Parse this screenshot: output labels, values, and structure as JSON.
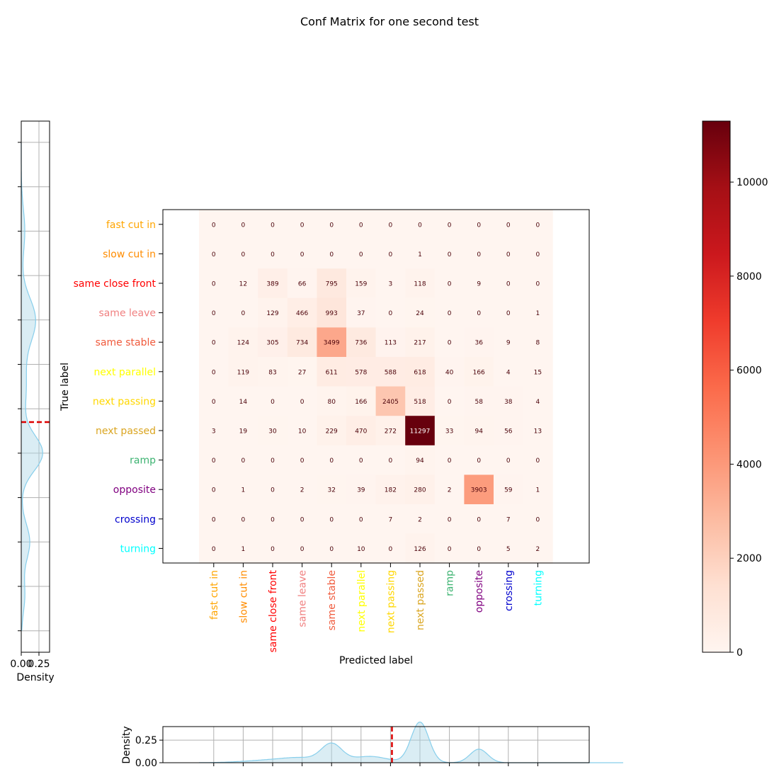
{
  "chart_data": {
    "type": "heatmap",
    "title": "Conf Matrix for one second test",
    "xlabel": "Predicted label",
    "ylabel": "True label",
    "labels": [
      "fast cut in",
      "slow cut in",
      "same close front",
      "same leave",
      "same stable",
      "next parallel",
      "next passing",
      "next passed",
      "ramp",
      "opposite",
      "crossing",
      "turning"
    ],
    "label_colors": [
      "#ffa500",
      "#ff8c00",
      "#ff0000",
      "#f08080",
      "#f05a3c",
      "#ffff00",
      "#ffd700",
      "#daa520",
      "#3cb371",
      "#800080",
      "#0000cd",
      "#00ffff"
    ],
    "matrix": [
      [
        0,
        0,
        0,
        0,
        0,
        0,
        0,
        0,
        0,
        0,
        0,
        0
      ],
      [
        0,
        0,
        0,
        0,
        0,
        0,
        0,
        1,
        0,
        0,
        0,
        0
      ],
      [
        0,
        12,
        389,
        66,
        795,
        159,
        3,
        118,
        0,
        9,
        0,
        0
      ],
      [
        0,
        0,
        129,
        466,
        993,
        37,
        0,
        24,
        0,
        0,
        0,
        1
      ],
      [
        0,
        124,
        305,
        734,
        3499,
        736,
        113,
        217,
        0,
        36,
        9,
        8
      ],
      [
        0,
        119,
        83,
        27,
        611,
        578,
        588,
        618,
        40,
        166,
        4,
        15
      ],
      [
        0,
        14,
        0,
        0,
        80,
        166,
        2405,
        518,
        0,
        58,
        38,
        4
      ],
      [
        3,
        19,
        30,
        10,
        229,
        470,
        272,
        11297,
        33,
        94,
        56,
        13
      ],
      [
        0,
        0,
        0,
        0,
        0,
        0,
        0,
        94,
        0,
        0,
        0,
        0
      ],
      [
        0,
        1,
        0,
        2,
        32,
        39,
        182,
        280,
        2,
        3903,
        59,
        1
      ],
      [
        0,
        0,
        0,
        0,
        0,
        0,
        7,
        2,
        0,
        0,
        7,
        0
      ],
      [
        0,
        1,
        0,
        0,
        0,
        10,
        0,
        126,
        0,
        0,
        5,
        2
      ]
    ],
    "colormap": "Reds",
    "colorbar": {
      "range": [
        0,
        11297
      ],
      "ticks": [
        0,
        2000,
        4000,
        6000,
        8000,
        10000
      ]
    },
    "top_density": {
      "ylabel": "Density",
      "yticks": [
        "0.00",
        "0.25"
      ],
      "ylim": [
        0,
        0.4
      ],
      "x_range": [
        -0.5,
        13.9
      ],
      "reference_line_x": 6.05,
      "peaks": [
        {
          "center": 4.0,
          "height": 0.2,
          "width": 0.35
        },
        {
          "center": 7.0,
          "height": 0.45,
          "width": 0.3
        },
        {
          "center": 9.0,
          "height": 0.15,
          "width": 0.3
        },
        {
          "center": 5.3,
          "height": 0.07,
          "width": 0.6
        },
        {
          "center": 2.0,
          "height": 0.03,
          "width": 0.9
        },
        {
          "center": 3.0,
          "height": 0.04,
          "width": 0.6
        }
      ],
      "fill_color": "#add8e6",
      "line_color": "#87ceeb",
      "reference_color": "#dd0000"
    },
    "left_density": {
      "xlabel": "Density",
      "xticks": [
        "0.00",
        "0.25"
      ],
      "xlim": [
        0,
        0.4
      ],
      "reference_line_y": 6.3,
      "peaks": [
        {
          "center": 7.0,
          "height": 0.3,
          "width": 0.4
        },
        {
          "center": 4.0,
          "height": 0.2,
          "width": 0.5
        },
        {
          "center": 2.0,
          "height": 0.05,
          "width": 0.5
        },
        {
          "center": 9.0,
          "height": 0.12,
          "width": 0.4
        },
        {
          "center": 5.5,
          "height": 0.07,
          "width": 0.6
        },
        {
          "center": 10.2,
          "height": 0.05,
          "width": 0.4
        }
      ],
      "fill_color": "#add8e6",
      "line_color": "#87ceeb",
      "reference_color": "#dd0000"
    }
  }
}
